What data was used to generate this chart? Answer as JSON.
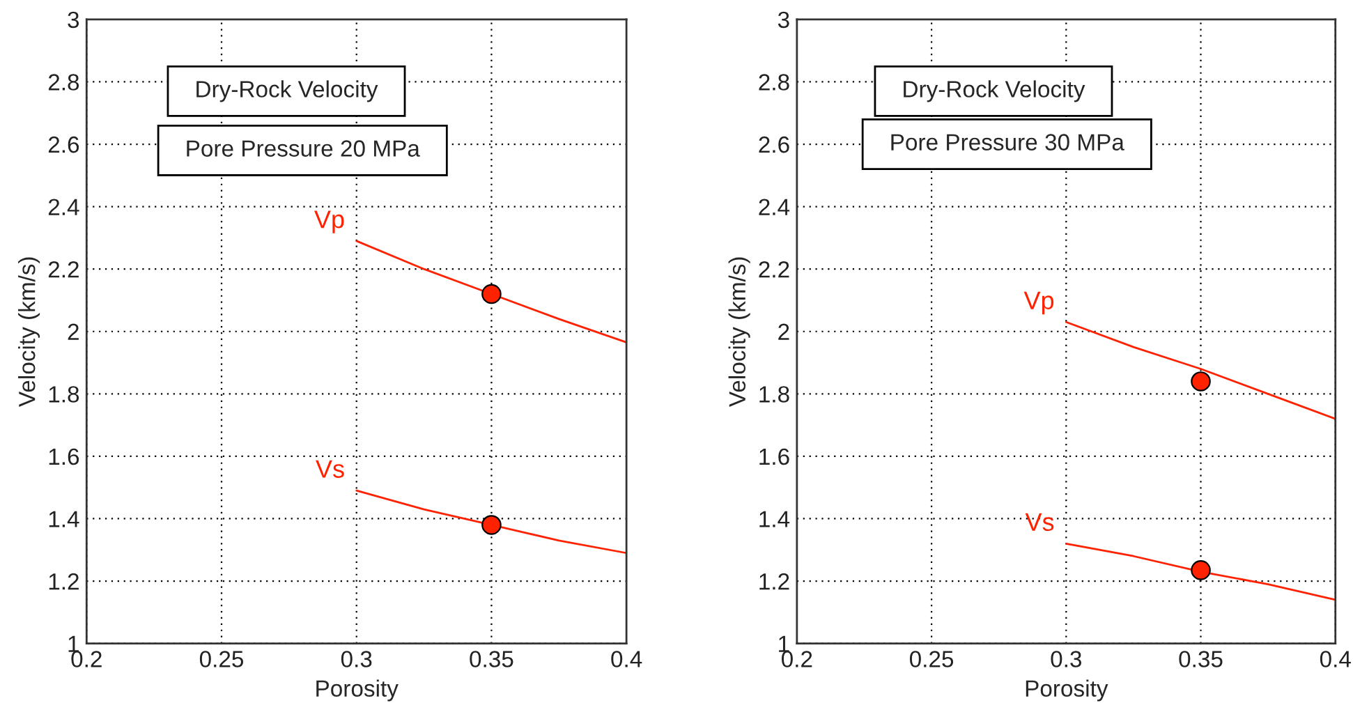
{
  "chart_data": [
    {
      "type": "line",
      "xlabel": "Porosity",
      "ylabel": "Velocity (km/s)",
      "annotations": [
        "Dry-Rock Velocity",
        "Pore Pressure 20 MPa"
      ],
      "xlim": [
        0.2,
        0.4
      ],
      "ylim": [
        1,
        3
      ],
      "xticks": [
        0.2,
        0.25,
        0.3,
        0.35,
        0.4
      ],
      "yticks": [
        1,
        1.2,
        1.4,
        1.6,
        1.8,
        2,
        2.2,
        2.4,
        2.6,
        2.8,
        3
      ],
      "grid": true,
      "line_style": "solid",
      "series": [
        {
          "name": "Vp",
          "color": "#ff2200",
          "x": [
            0.3,
            0.325,
            0.35,
            0.375,
            0.4
          ],
          "values": [
            2.29,
            2.2,
            2.12,
            2.04,
            1.965
          ]
        },
        {
          "name": "Vs",
          "color": "#ff2200",
          "x": [
            0.3,
            0.325,
            0.35,
            0.375,
            0.4
          ],
          "values": [
            1.49,
            1.43,
            1.38,
            1.33,
            1.29
          ]
        },
        {
          "type": "scatter",
          "marker": "circle",
          "color": "#ff2200",
          "x": [
            0.35,
            0.35
          ],
          "values": [
            2.12,
            1.38
          ]
        }
      ]
    },
    {
      "type": "line",
      "xlabel": "Porosity",
      "ylabel": "Velocity (km/s)",
      "annotations": [
        "Dry-Rock Velocity",
        "Pore Pressure 30 MPa"
      ],
      "xlim": [
        0.2,
        0.4
      ],
      "ylim": [
        1,
        3
      ],
      "xticks": [
        0.2,
        0.25,
        0.3,
        0.35,
        0.4
      ],
      "yticks": [
        1,
        1.2,
        1.4,
        1.6,
        1.8,
        2,
        2.2,
        2.4,
        2.6,
        2.8,
        3
      ],
      "grid": true,
      "line_style": "solid",
      "series": [
        {
          "name": "Vp",
          "color": "#ff2200",
          "x": [
            0.3,
            0.325,
            0.35,
            0.375,
            0.4
          ],
          "values": [
            2.03,
            1.95,
            1.88,
            1.8,
            1.72
          ]
        },
        {
          "name": "Vs",
          "color": "#ff2200",
          "x": [
            0.3,
            0.325,
            0.35,
            0.375,
            0.4
          ],
          "values": [
            1.32,
            1.28,
            1.23,
            1.19,
            1.14
          ]
        },
        {
          "type": "scatter",
          "marker": "circle",
          "color": "#ff2200",
          "x": [
            0.35,
            0.35
          ],
          "values": [
            1.84,
            1.235
          ]
        }
      ]
    }
  ]
}
